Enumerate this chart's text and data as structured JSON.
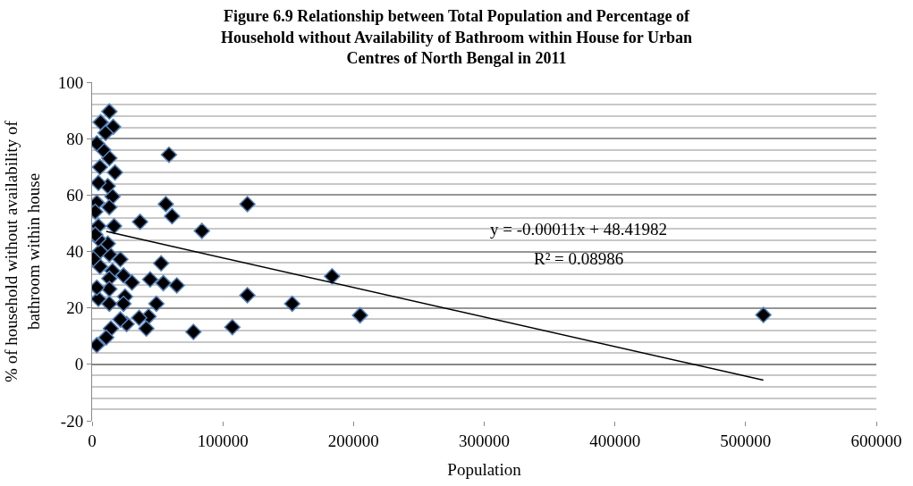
{
  "chart_data": {
    "type": "scatter",
    "title": "Figure 6.9 Relationship between Total Population and Percentage of Household without Availability of Bathroom within House for Urban Centres of North Bengal in 2011",
    "xlabel": "Population",
    "ylabel": "% of household without availability of bathroom within house",
    "series": [
      {
        "color": "#000000",
        "marker": "diamond",
        "x": [
          513600,
          205000,
          183600,
          153100,
          118800,
          118800,
          107300,
          84000,
          77500,
          64800,
          61200,
          58800,
          56400,
          54500,
          52800,
          49200,
          44400,
          43200,
          41500,
          36700,
          36000,
          30500,
          26400,
          25200,
          24000,
          24000,
          21600,
          21600,
          17500,
          16800,
          16100,
          15600,
          15600,
          14400,
          13200,
          13200,
          13200,
          13200,
          13200,
          13200,
          13200,
          12000,
          12000,
          10800,
          10300,
          8400,
          6500,
          6000,
          6000,
          6000,
          4800,
          4800,
          4800,
          4800,
          3600,
          3600,
          3600,
          3600,
          2400,
          2400,
          1000
        ],
        "values": [
          17.5,
          17.4,
          31.2,
          21.5,
          56.8,
          24.5,
          13.2,
          47.3,
          11.5,
          28,
          52.5,
          74.3,
          56.8,
          28.8,
          35.8,
          21.5,
          30.1,
          17,
          12.7,
          50.5,
          16.5,
          29,
          14.3,
          24,
          31.5,
          21.5,
          37.2,
          15.9,
          68,
          49,
          84.2,
          59.5,
          33.1,
          12.7,
          89.6,
          73.1,
          55.7,
          39,
          30.4,
          26.7,
          21.5,
          63.2,
          42.8,
          9.5,
          82,
          76,
          85.8,
          69.9,
          40.1,
          34.7,
          64.3,
          49,
          44.4,
          23.2,
          78.3,
          57.3,
          27.2,
          6.8,
          54.1,
          46,
          37.4
        ]
      },
      {
        "type": "line",
        "color": "#000000",
        "x": [
          10800,
          513600
        ],
        "values": [
          47.1,
          -5.6
        ]
      }
    ],
    "annotations": [
      "y = -0.00011x + 48.41982",
      "R² = 0.08986"
    ],
    "xlim": [
      0,
      600000
    ],
    "xticks": [
      0,
      100000,
      200000,
      300000,
      400000,
      500000,
      600000
    ],
    "ylim": [
      -20,
      100
    ],
    "yticks": [
      -20,
      0,
      20,
      40,
      60,
      80,
      100
    ],
    "grid": "y"
  }
}
